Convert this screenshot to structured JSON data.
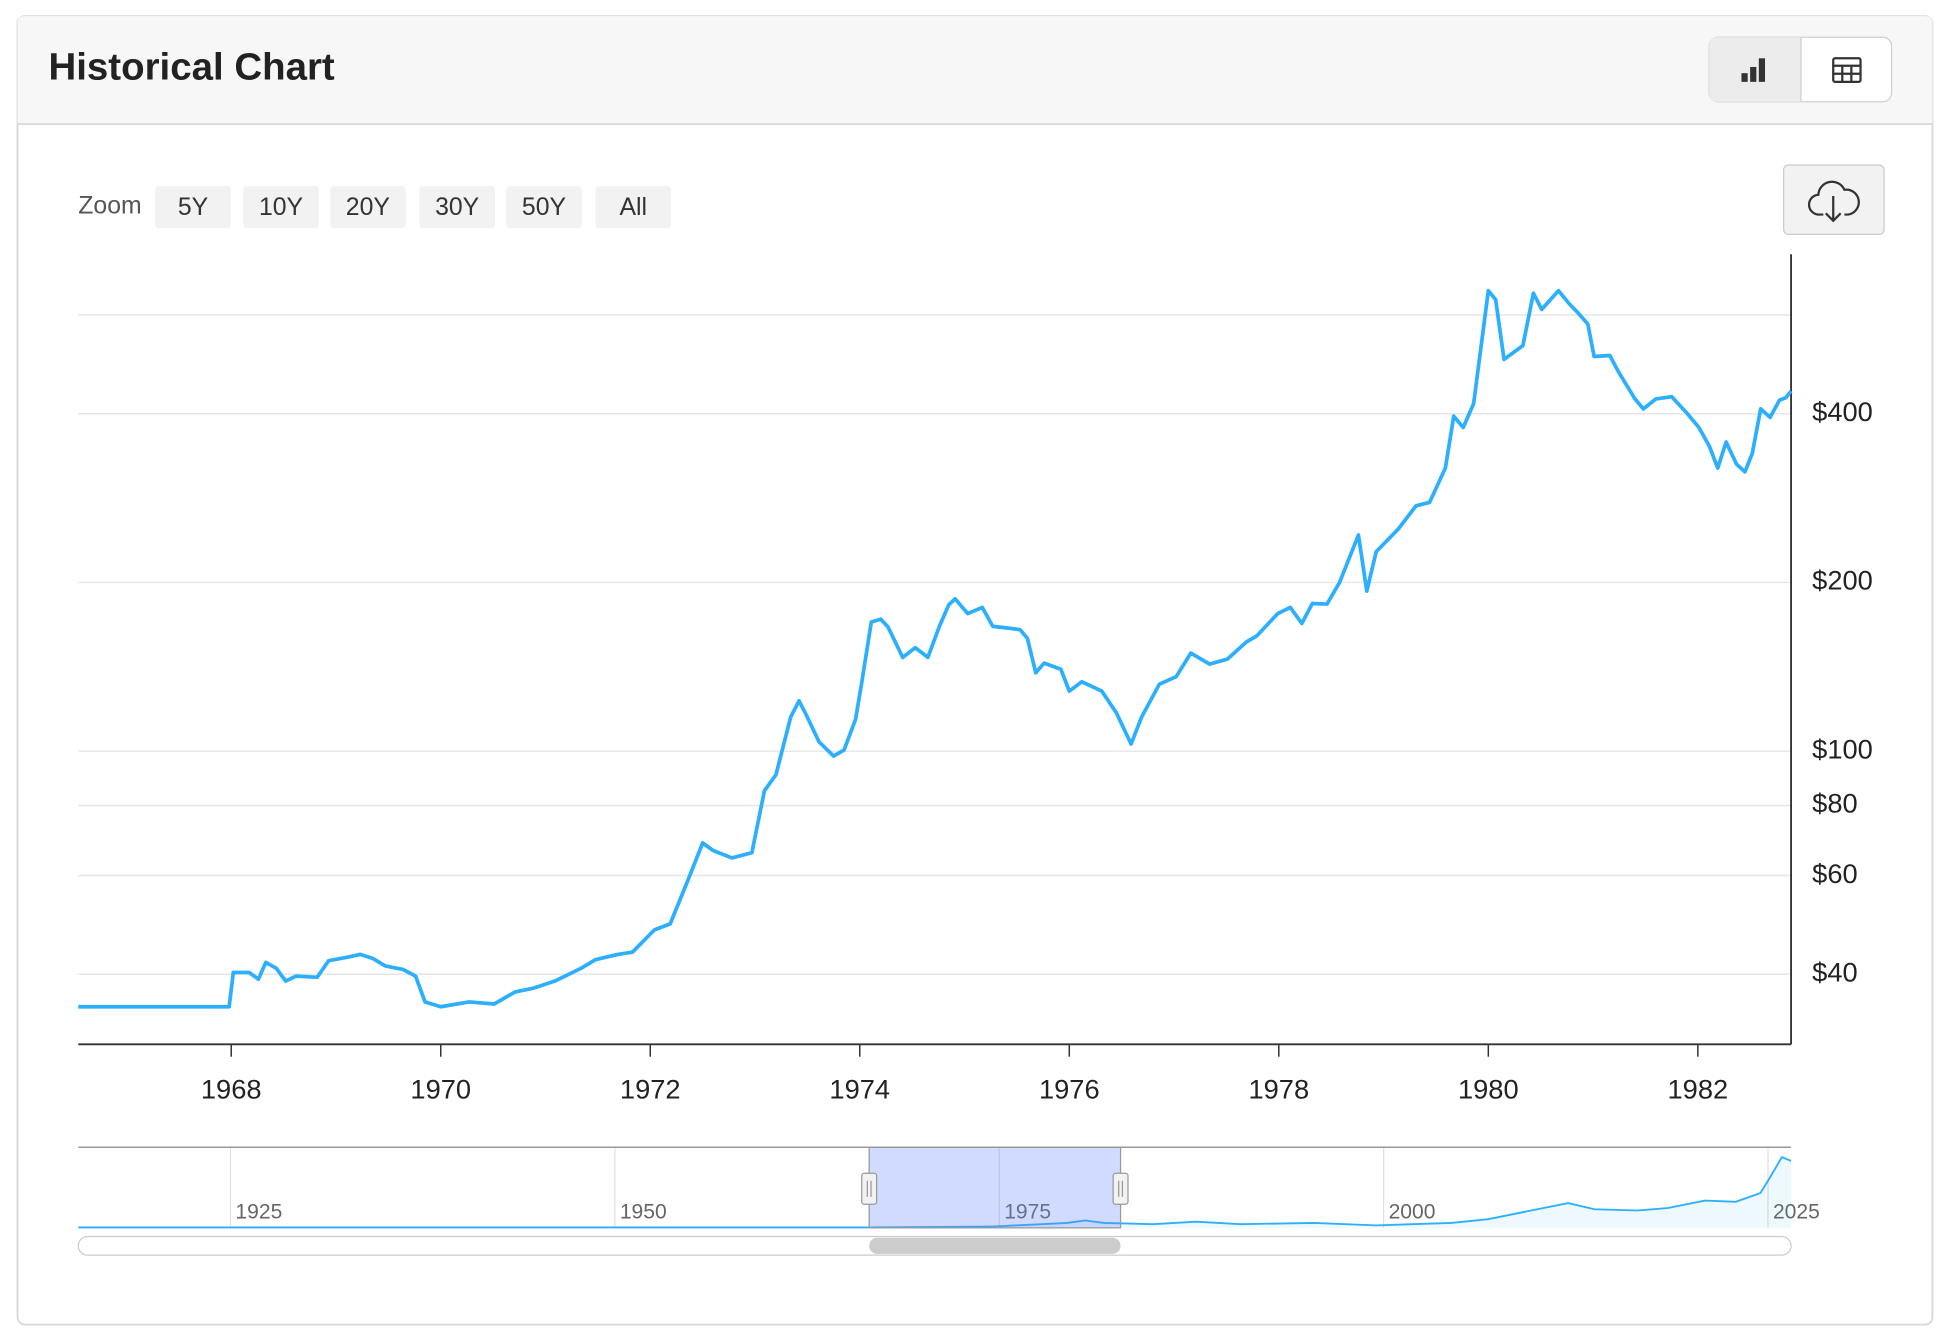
{
  "header": {
    "title": "Historical Chart"
  },
  "zoom": {
    "label": "Zoom",
    "buttons": [
      "5Y",
      "10Y",
      "20Y",
      "30Y",
      "50Y",
      "All"
    ]
  },
  "chart_data": [
    {
      "type": "line",
      "color": "#2caffe",
      "log_scale": true,
      "grid": true,
      "xlim": [
        1966.54,
        1982.89
      ],
      "xticks": [
        1968,
        1970,
        1972,
        1974,
        1976,
        1978,
        1980,
        1982
      ],
      "ylim": [
        30,
        770
      ],
      "yticks": [
        {
          "value": 40,
          "label": "$40"
        },
        {
          "value": 60,
          "label": "$60"
        },
        {
          "value": 80,
          "label": "$80"
        },
        {
          "value": 100,
          "label": "$100"
        },
        {
          "value": 200,
          "label": "$200"
        },
        {
          "value": 400,
          "label": "$400"
        },
        {
          "value": 600,
          "label": null
        }
      ],
      "x": [
        1966.54,
        1967.98,
        1968.02,
        1968.17,
        1968.26,
        1968.33,
        1968.43,
        1968.52,
        1968.62,
        1968.82,
        1968.93,
        1969.11,
        1969.23,
        1969.35,
        1969.47,
        1969.64,
        1969.76,
        1969.85,
        1970.0,
        1970.27,
        1970.51,
        1970.71,
        1970.89,
        1971.09,
        1971.34,
        1971.48,
        1971.69,
        1971.83,
        1972.04,
        1972.19,
        1972.37,
        1972.5,
        1972.6,
        1972.78,
        1972.97,
        1973.09,
        1973.2,
        1973.34,
        1973.42,
        1973.49,
        1973.61,
        1973.75,
        1973.85,
        1973.96,
        1974.02,
        1974.11,
        1974.2,
        1974.27,
        1974.41,
        1974.53,
        1974.65,
        1974.76,
        1974.85,
        1974.91,
        1975.03,
        1975.17,
        1975.27,
        1975.44,
        1975.53,
        1975.6,
        1975.68,
        1975.76,
        1975.92,
        1976.0,
        1976.12,
        1976.31,
        1976.45,
        1976.59,
        1976.69,
        1976.86,
        1977.02,
        1977.16,
        1977.34,
        1977.51,
        1977.69,
        1977.79,
        1977.99,
        1978.11,
        1978.22,
        1978.32,
        1978.46,
        1978.58,
        1978.76,
        1978.84,
        1978.93,
        1979.14,
        1979.31,
        1979.44,
        1979.59,
        1979.67,
        1979.76,
        1979.86,
        1980.0,
        1980.07,
        1980.15,
        1980.33,
        1980.43,
        1980.51,
        1980.67,
        1980.77,
        1980.85,
        1980.95,
        1981.01,
        1981.16,
        1981.24,
        1981.4,
        1981.48,
        1981.6,
        1981.75,
        1981.89,
        1982.01,
        1982.11,
        1982.19,
        1982.27,
        1982.37,
        1982.45,
        1982.52,
        1982.6,
        1982.69,
        1982.78,
        1982.84,
        1982.89
      ],
      "values": [
        35,
        35,
        40.3,
        40.3,
        39.2,
        42,
        41,
        38.9,
        39.7,
        39.5,
        42.3,
        42.9,
        43.4,
        42.7,
        41.4,
        40.8,
        39.7,
        35.7,
        35,
        35.7,
        35.4,
        37.2,
        37.8,
        38.9,
        41,
        42.5,
        43.4,
        43.8,
        48,
        49.2,
        59.5,
        68.6,
        66.5,
        64.5,
        65.9,
        85,
        90.8,
        115,
        123,
        116,
        104,
        98,
        100.5,
        114,
        133,
        170,
        172,
        166.5,
        147,
        153,
        147,
        167,
        182.5,
        187,
        176,
        180.5,
        167,
        165.6,
        164.7,
        159,
        138,
        143.6,
        140,
        128,
        133,
        128,
        117,
        103,
        115,
        131.7,
        135.8,
        149.6,
        143,
        146,
        156.6,
        160.6,
        176,
        180.5,
        169,
        183.4,
        183,
        200,
        243,
        193,
        227,
        249,
        274,
        278,
        320,
        396,
        378,
        417,
        663,
        639,
        500,
        529,
        656,
        614,
        663,
        629,
        607,
        578,
        506,
        508,
        476,
        425,
        408,
        425,
        429,
        402,
        378,
        350,
        320,
        356,
        325,
        315,
        340,
        408,
        394,
        423,
        427,
        439
      ]
    },
    {
      "type": "area",
      "color": "#2caffe",
      "xlim": [
        1915.1,
        2026.5
      ],
      "ylim": [
        0,
        3575
      ],
      "xticks": [
        1925,
        1950,
        1975,
        2000,
        2025
      ],
      "x": [
        1915.1,
        1966.5,
        1974.5,
        1979.4,
        1980.6,
        1981.8,
        1985.0,
        1987.8,
        1990.7,
        1995.5,
        1999.5,
        2004.4,
        2006.8,
        2010.0,
        2012.0,
        2013.7,
        2016.5,
        2018.5,
        2020.9,
        2022.9,
        2024.5,
        2025.1,
        2025.9,
        2026.5
      ],
      "values": [
        20,
        20,
        55,
        220,
        330,
        220,
        165,
        275,
        165,
        220,
        110,
        220,
        385,
        825,
        1100,
        825,
        770,
        880,
        1210,
        1155,
        1540,
        2200,
        3135,
        2970
      ]
    }
  ]
}
